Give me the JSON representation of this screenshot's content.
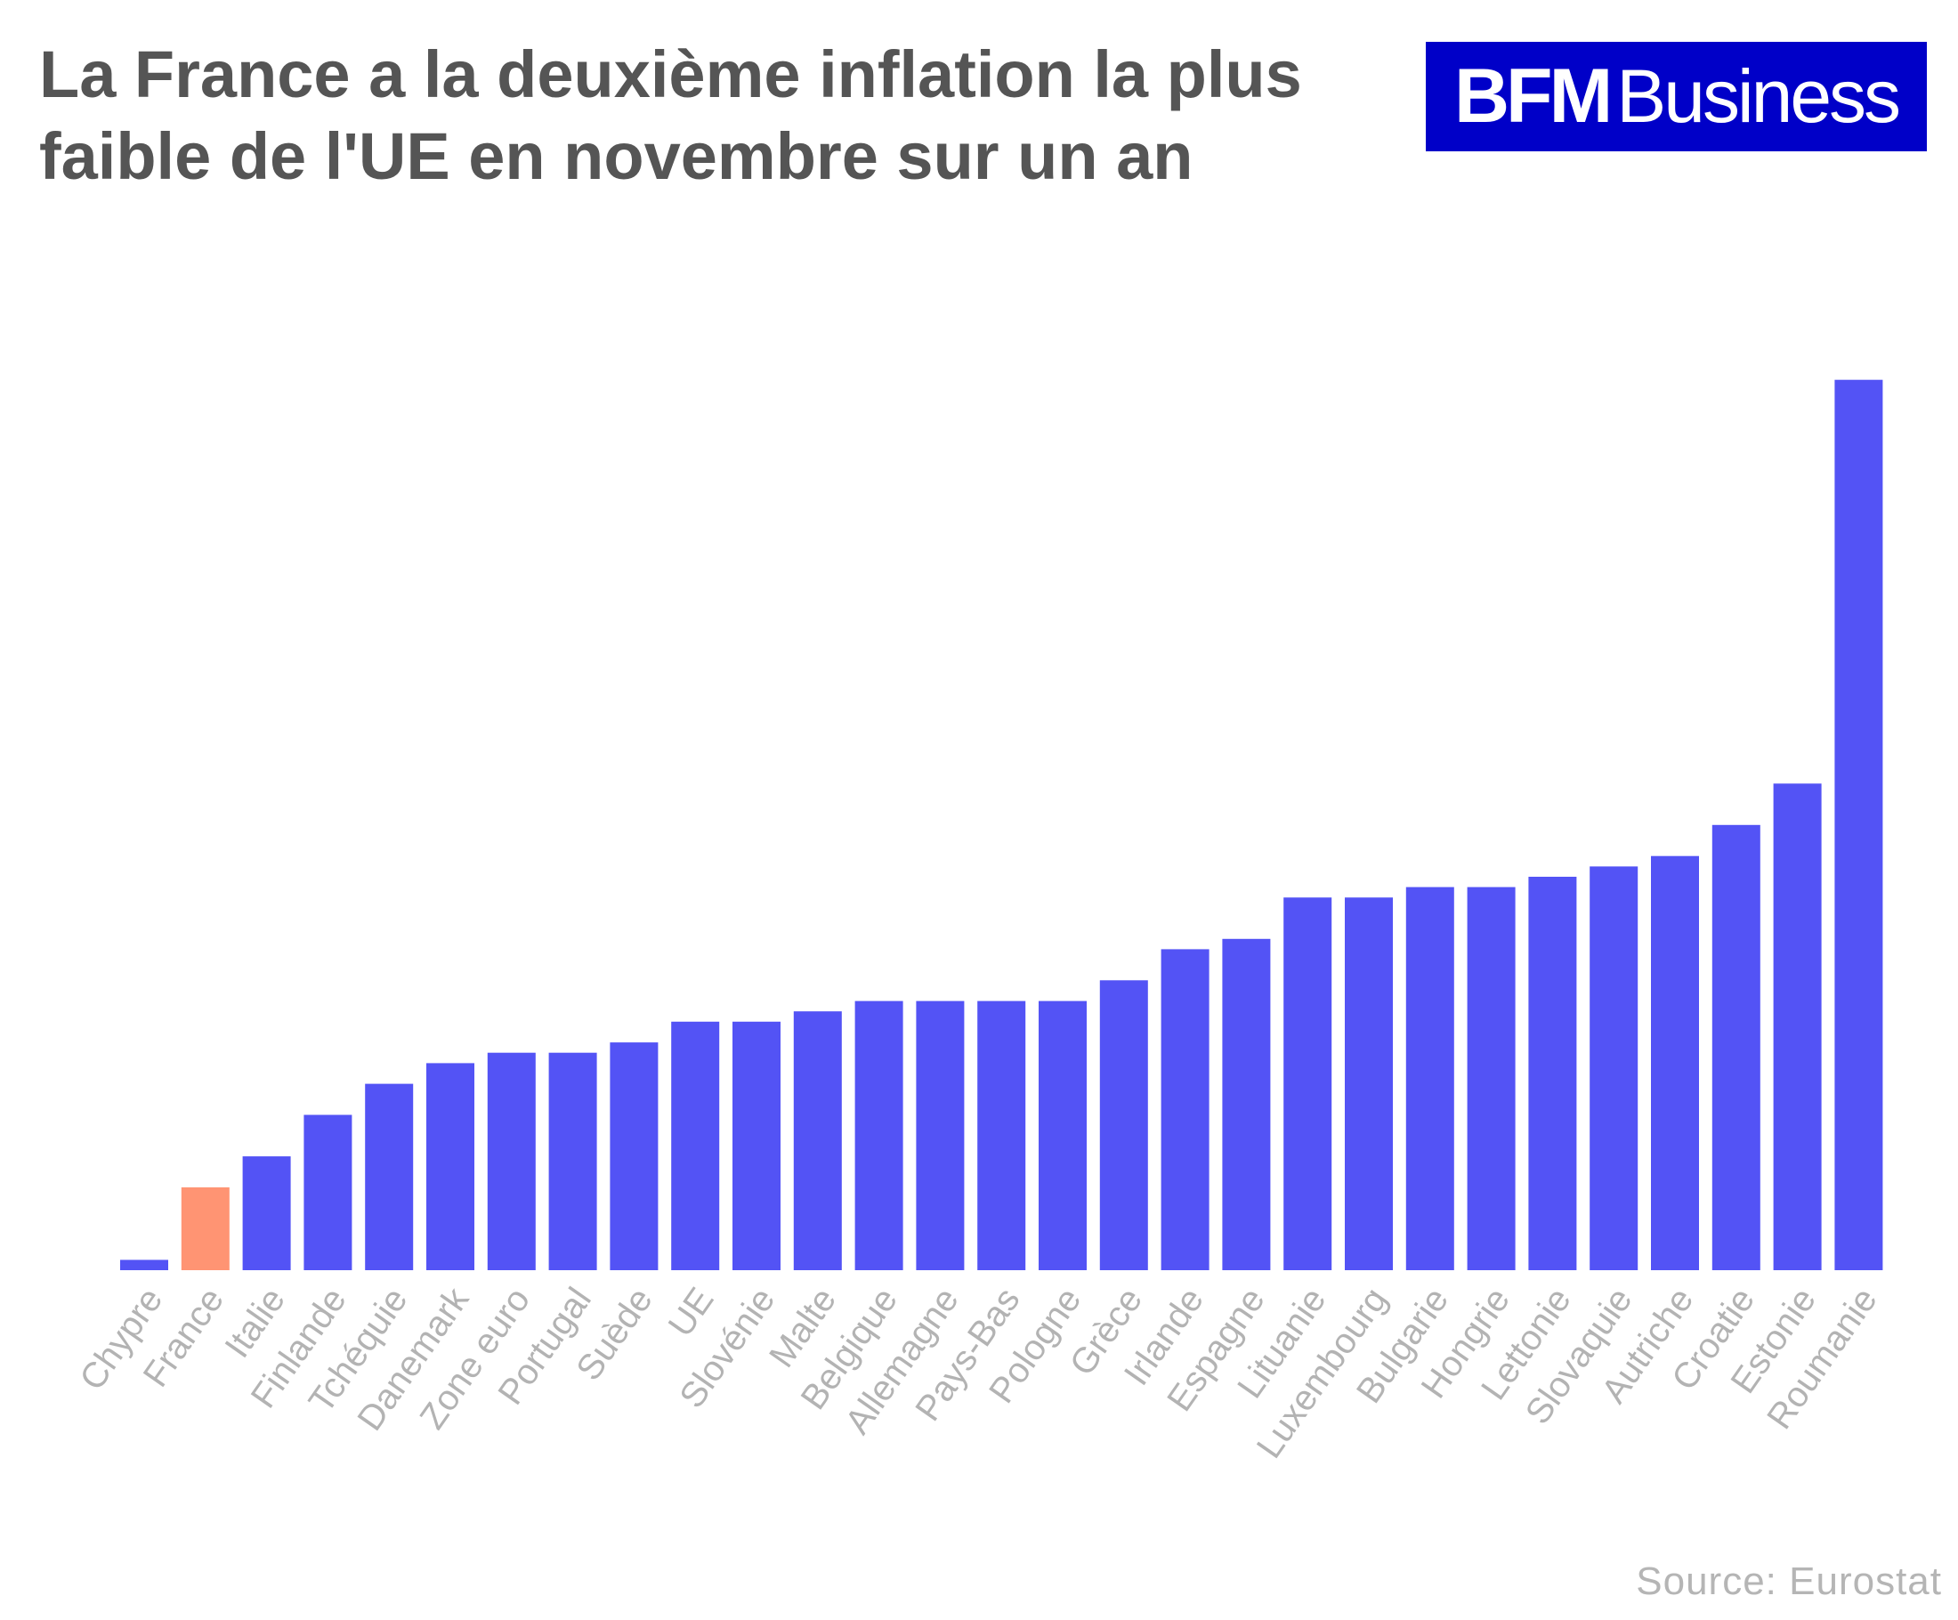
{
  "title": "La France a la deuxième inflation la plus faible de l'UE en novembre sur un an",
  "logo": {
    "bfm": "BFM",
    "business": "Business",
    "background": "#0000c8"
  },
  "source": "Source: Eurostat",
  "colors": {
    "bar": "#5353f5",
    "highlight": "#ff9473",
    "tick_label": "#b3b3b3"
  },
  "chart_data": {
    "type": "bar",
    "title": "La France a la deuxième inflation la plus faible de l'UE en novembre sur un an",
    "xlabel": "",
    "ylabel": "",
    "ylim": [
      0,
      9.5
    ],
    "grid": false,
    "highlight_category": "France",
    "categories": [
      "Chypre",
      "France",
      "Italie",
      "Finlande",
      "Tchéquie",
      "Danemark",
      "Zone euro",
      "Portugal",
      "Suède",
      "UE",
      "Slovénie",
      "Malte",
      "Belgique",
      "Allemagne",
      "Pays-Bas",
      "Pologne",
      "Grèce",
      "Irlande",
      "Espagne",
      "Lituanie",
      "Luxembourg",
      "Bulgarie",
      "Hongrie",
      "Lettonie",
      "Slovaquie",
      "Autriche",
      "Croatie",
      "Estonie",
      "Roumanie"
    ],
    "values": [
      0.1,
      0.8,
      1.1,
      1.5,
      1.8,
      2.0,
      2.1,
      2.1,
      2.2,
      2.4,
      2.4,
      2.5,
      2.6,
      2.6,
      2.6,
      2.6,
      2.8,
      3.1,
      3.2,
      3.6,
      3.6,
      3.7,
      3.7,
      3.8,
      3.9,
      4.0,
      4.3,
      4.7,
      8.6
    ]
  }
}
